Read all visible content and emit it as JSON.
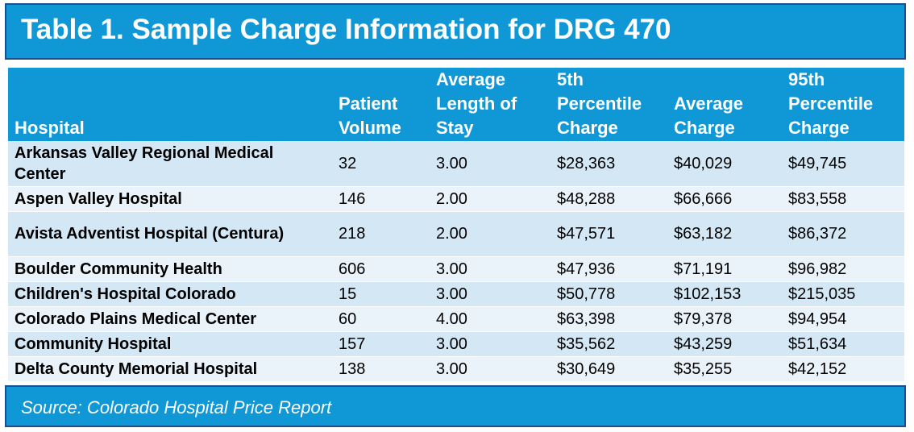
{
  "title": "Table 1. Sample Charge Information for DRG 470",
  "table": {
    "headers": [
      "Hospital",
      "Patient Volume",
      "Average Length of Stay",
      "5th Percentile Charge",
      "Average Charge",
      "95th Percentile Charge"
    ],
    "rows": [
      [
        "Arkansas Valley Regional Medical Center",
        "32",
        "3.00",
        "$28,363",
        "$40,029",
        "$49,745"
      ],
      [
        "Aspen Valley Hospital",
        "146",
        "2.00",
        "$48,288",
        "$66,666",
        "$83,558"
      ],
      [
        "Avista Adventist Hospital (Centura)",
        "218",
        "2.00",
        "$47,571",
        "$63,182",
        "$86,372"
      ],
      [
        "Boulder Community Health",
        "606",
        "3.00",
        "$47,936",
        "$71,191",
        "$96,982"
      ],
      [
        "Children's Hospital Colorado",
        "15",
        "3.00",
        "$50,778",
        "$102,153",
        "$215,035"
      ],
      [
        "Colorado Plains Medical Center",
        "60",
        "4.00",
        "$63,398",
        "$79,378",
        "$94,954"
      ],
      [
        "Community Hospital",
        "157",
        "3.00",
        "$35,562",
        "$43,259",
        "$51,634"
      ],
      [
        "Delta County Memorial Hospital",
        "138",
        "3.00",
        "$30,649",
        "$35,255",
        "$42,152"
      ]
    ]
  },
  "source": "Source: Colorado Hospital Price Report",
  "colors": {
    "header_blue": "#0f97d6",
    "border_navy": "#1c4f8f",
    "row_light": "#d3e7f5",
    "row_lighter": "#eaf3fa"
  }
}
